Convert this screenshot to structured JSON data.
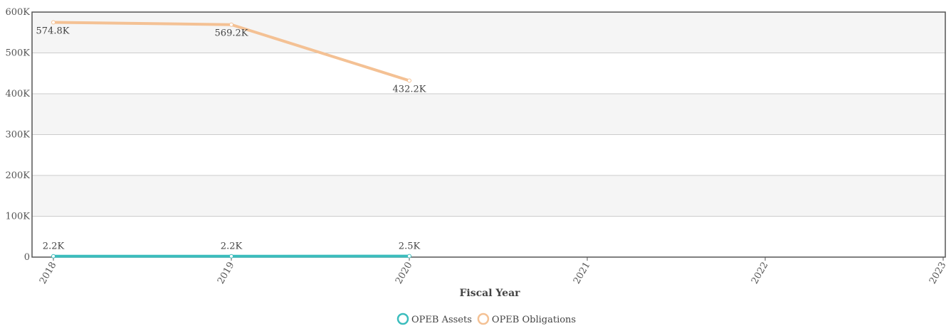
{
  "chart_data": {
    "type": "line",
    "x_label": "Fiscal Year",
    "categories": [
      "2018",
      "2019",
      "2020",
      "2021",
      "2022",
      "2023"
    ],
    "series": [
      {
        "name": "OPEB Assets",
        "color": "#3bbdbd",
        "values": [
          2200,
          2200,
          2500,
          null,
          null,
          null
        ],
        "value_labels": [
          "2.2K",
          "2.2K",
          "2.5K",
          null,
          null,
          null
        ]
      },
      {
        "name": "OPEB Obligations",
        "color": "#f4c194",
        "values": [
          574800,
          569200,
          432200,
          null,
          null,
          null
        ],
        "value_labels": [
          "574.8K",
          "569.2K",
          "432.2K",
          null,
          null,
          null
        ]
      }
    ],
    "ylim": [
      0,
      600000
    ],
    "yticks": [
      0,
      {
        "value": 100000,
        "label": "100K"
      },
      {
        "value": 200000,
        "label": "200K"
      },
      {
        "value": 300000,
        "label": "300K"
      },
      {
        "value": 400000,
        "label": "400K"
      },
      {
        "value": 500000,
        "label": "500K"
      },
      {
        "value": 600000,
        "label": "600K"
      }
    ],
    "grid": true,
    "legend": "bottom"
  }
}
